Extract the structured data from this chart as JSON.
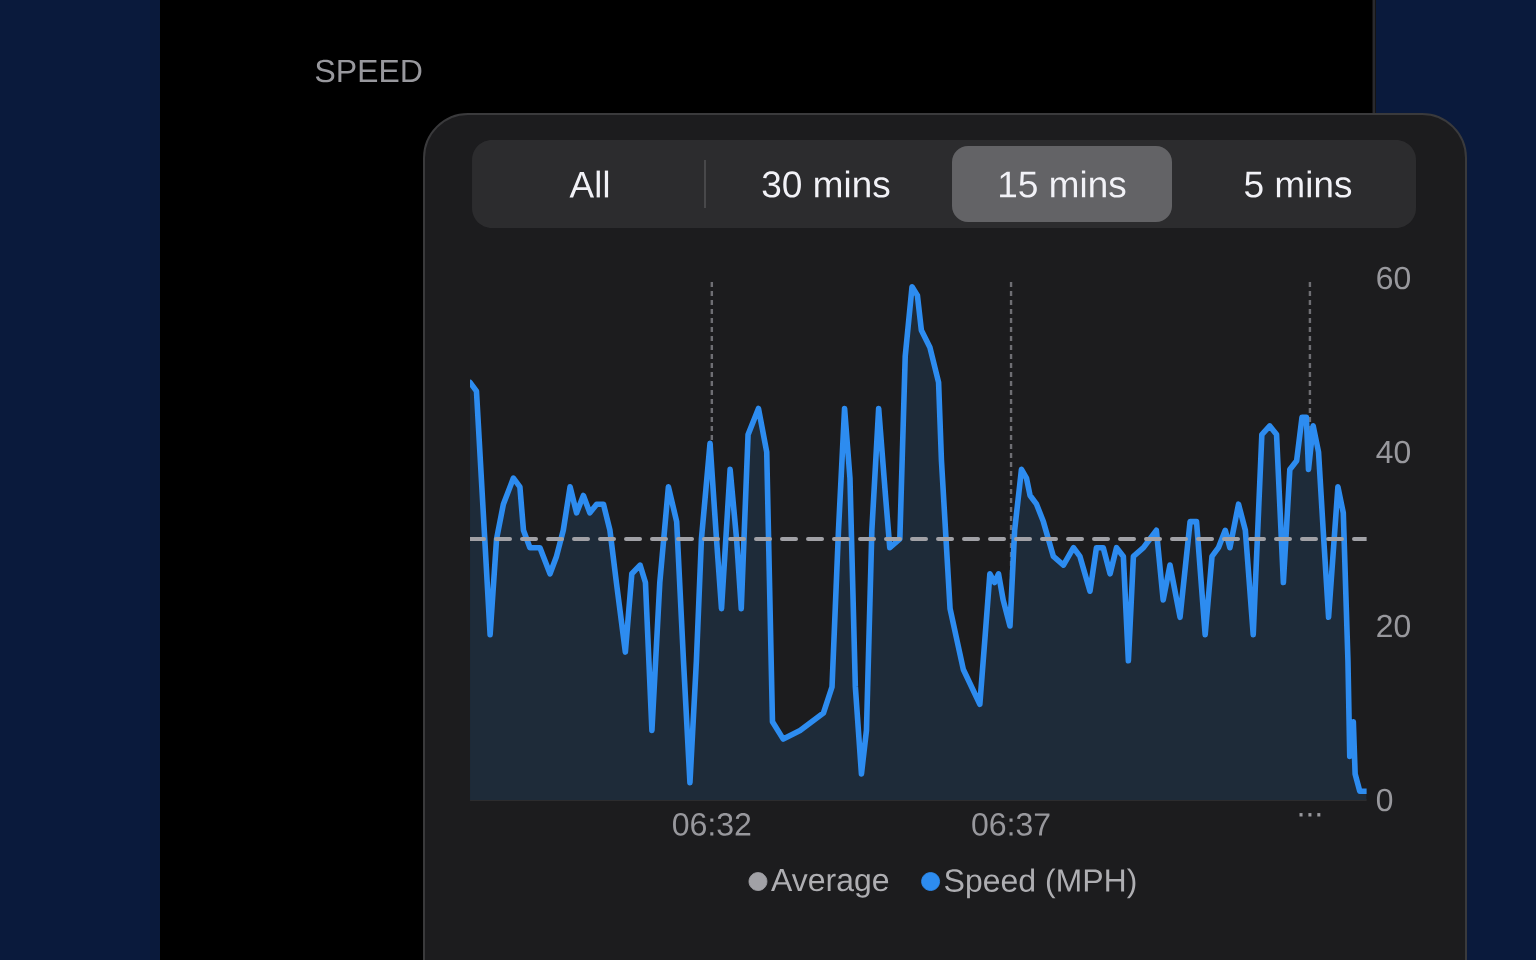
{
  "chart_data": {
    "type": "line",
    "title": "SPEED",
    "annotations": [
      "All",
      "30 mins",
      "15 mins",
      "5 mins"
    ],
    "xlim": [
      6.4659,
      6.7158
    ],
    "ylim": [
      0,
      60
    ],
    "xticks": [
      {
        "value": 6.5333,
        "label": "06:32"
      },
      {
        "value": 6.6167,
        "label": "06:37"
      },
      {
        "value": 6.7,
        "label": "..."
      }
    ],
    "yticks": [
      0,
      20,
      40,
      60
    ],
    "grid": "x",
    "legend": "bottom",
    "series": [
      {
        "name": "Average",
        "color": "#a1a1a6",
        "line_style": "dashed",
        "x": [
          6.4659,
          6.7158
        ],
        "values": [
          30,
          30
        ]
      },
      {
        "name": "Speed (MPH)",
        "type": "area",
        "color": "#2d8cf0",
        "x": [
          6.4659,
          6.4677,
          6.4715,
          6.4733,
          6.4752,
          6.478,
          6.4798,
          6.4808,
          6.4826,
          6.4854,
          6.4882,
          6.49,
          6.4919,
          6.4938,
          6.4956,
          6.4975,
          6.4993,
          6.5012,
          6.5031,
          6.5049,
          6.5067,
          6.5092,
          6.511,
          6.5133,
          6.5148,
          6.5166,
          6.5188,
          6.5212,
          6.5235,
          6.5254,
          6.5272,
          6.529,
          6.5304,
          6.5328,
          6.5346,
          6.536,
          6.5384,
          6.5402,
          6.5415,
          6.5434,
          6.5463,
          6.5486,
          6.5502,
          6.5532,
          6.5579,
          6.5644,
          6.5668,
          6.5686,
          6.5703,
          6.5718,
          6.5733,
          6.575,
          6.5764,
          6.5779,
          6.5798,
          6.5817,
          6.5829,
          6.5857,
          6.5872,
          6.5891,
          6.5906,
          6.5917,
          6.5941,
          6.5965,
          6.5973,
          6.5997,
          6.6034,
          6.608,
          6.6095,
          6.6108,
          6.6121,
          6.6132,
          6.6145,
          6.6164,
          6.6177,
          6.6196,
          6.621,
          6.622,
          6.6238,
          6.6257,
          6.6285,
          6.6313,
          6.6341,
          6.6359,
          6.6387,
          6.6405,
          6.6424,
          6.6443,
          6.6461,
          6.648,
          6.6494,
          6.6508,
          6.6536,
          6.6554,
          6.6572,
          6.6591,
          6.661,
          6.6638,
          6.6666,
          6.6684,
          6.6708,
          6.6727,
          6.6745,
          6.6764,
          6.6777,
          6.6801,
          6.682,
          6.6842,
          6.6866,
          6.6888,
          6.6907,
          6.6926,
          6.6944,
          6.6963,
          6.6978,
          6.699,
          6.6996,
          6.7009,
          6.7024,
          6.7037,
          6.7052,
          6.7078,
          6.7093,
          6.7106,
          6.7111,
          6.7121,
          6.7126,
          6.7139,
          6.7158
        ],
        "values": [
          48,
          47,
          19,
          30,
          34,
          37,
          36,
          31,
          29,
          29,
          26,
          28,
          31,
          36,
          33,
          35,
          33,
          34,
          34,
          31,
          25,
          17,
          26,
          27,
          25,
          8,
          25,
          36,
          32,
          16,
          2,
          16,
          30,
          41,
          30,
          22,
          38,
          30,
          22,
          42,
          45,
          40,
          9,
          7,
          8,
          10,
          13,
          31,
          45,
          37,
          13,
          3,
          8,
          31,
          45,
          35,
          29,
          30,
          51,
          59,
          58,
          54,
          52,
          48,
          39,
          22,
          15,
          11,
          19,
          26,
          25,
          26,
          23,
          20,
          31,
          38,
          37,
          35,
          34,
          32,
          28,
          27,
          29,
          28,
          24,
          29,
          29,
          26,
          29,
          28,
          16,
          28,
          29,
          30,
          31,
          23,
          27,
          21,
          32,
          32,
          19,
          28,
          29,
          31,
          29,
          34,
          31,
          19,
          42,
          43,
          42,
          25,
          38,
          39,
          44,
          44,
          38,
          43,
          40,
          31,
          21,
          36,
          33,
          16,
          5,
          9,
          3,
          1,
          1
        ]
      }
    ]
  }
}
